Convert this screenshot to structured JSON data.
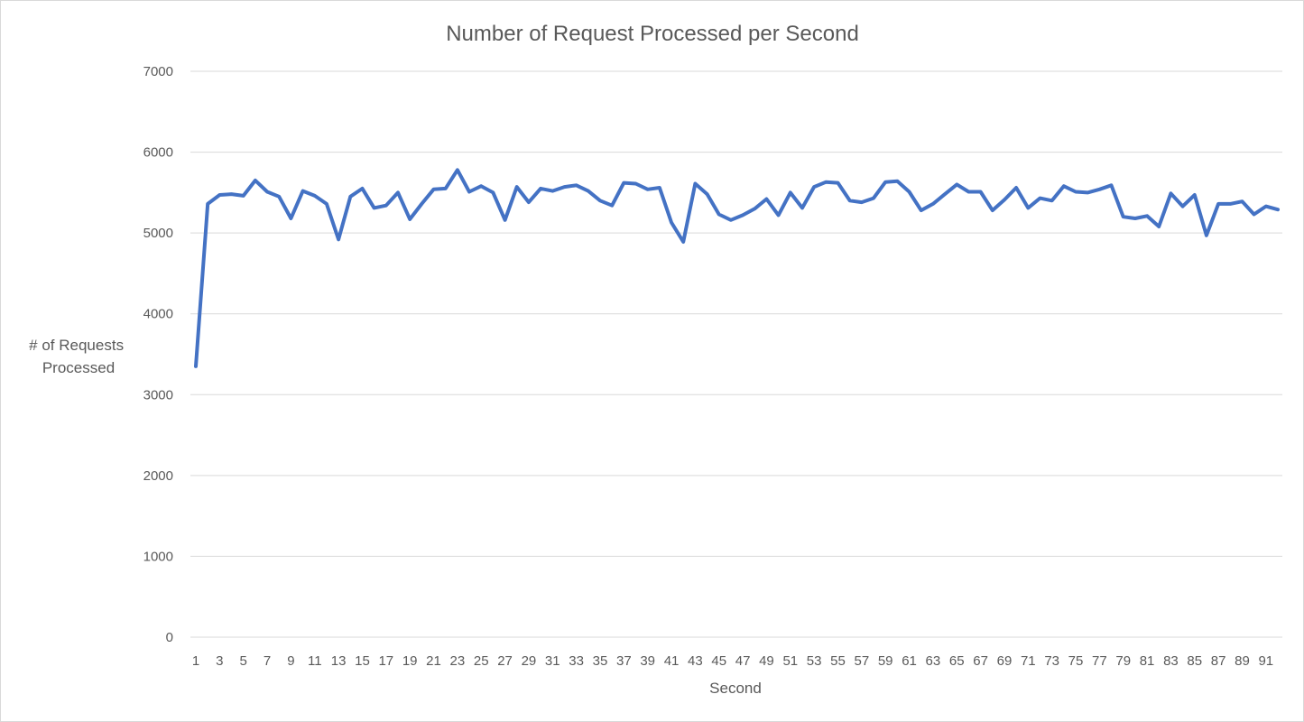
{
  "chart_data": {
    "type": "line",
    "title": "Number of Request Processed per Second",
    "xlabel": "Second",
    "ylabel_lines": [
      "# of Requests",
      "Processed"
    ],
    "ylim": [
      0,
      7000
    ],
    "yticks": [
      0,
      1000,
      2000,
      3000,
      4000,
      5000,
      6000,
      7000
    ],
    "x_tick_step": 2,
    "grid": true,
    "legend": "none",
    "series_color": "#4472C4",
    "x": [
      1,
      2,
      3,
      4,
      5,
      6,
      7,
      8,
      9,
      10,
      11,
      12,
      13,
      14,
      15,
      16,
      17,
      18,
      19,
      20,
      21,
      22,
      23,
      24,
      25,
      26,
      27,
      28,
      29,
      30,
      31,
      32,
      33,
      34,
      35,
      36,
      37,
      38,
      39,
      40,
      41,
      42,
      43,
      44,
      45,
      46,
      47,
      48,
      49,
      50,
      51,
      52,
      53,
      54,
      55,
      56,
      57,
      58,
      59,
      60,
      61,
      62,
      63,
      64,
      65,
      66,
      67,
      68,
      69,
      70,
      71,
      72,
      73,
      74,
      75,
      76,
      77,
      78,
      79,
      80,
      81,
      82,
      83,
      84,
      85,
      86,
      87,
      88,
      89,
      90,
      91,
      92
    ],
    "series": [
      {
        "values": [
          3350,
          5360,
          5470,
          5480,
          5460,
          5650,
          5510,
          5450,
          5180,
          5520,
          5460,
          5360,
          4920,
          5450,
          5550,
          5310,
          5340,
          5500,
          5170,
          5360,
          5540,
          5550,
          5780,
          5510,
          5580,
          5500,
          5160,
          5570,
          5380,
          5550,
          5520,
          5570,
          5590,
          5520,
          5400,
          5340,
          5620,
          5610,
          5540,
          5560,
          5130,
          4890,
          5610,
          5480,
          5230,
          5160,
          5220,
          5300,
          5420,
          5220,
          5500,
          5310,
          5570,
          5630,
          5620,
          5400,
          5380,
          5430,
          5630,
          5640,
          5510,
          5280,
          5360,
          5480,
          5600,
          5510,
          5510,
          5280,
          5410,
          5560,
          5310,
          5430,
          5400,
          5580,
          5510,
          5500,
          5540,
          5590,
          5200,
          5180,
          5210,
          5080,
          5490,
          5330,
          5470,
          4970,
          5360,
          5360,
          5390,
          5230,
          5330,
          5290
        ]
      }
    ]
  }
}
